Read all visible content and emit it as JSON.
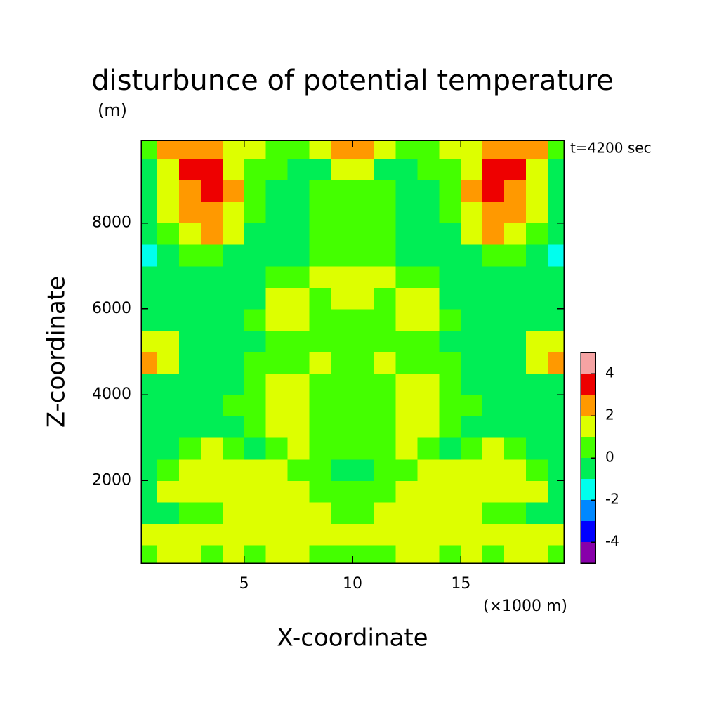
{
  "chart_data": {
    "type": "contour",
    "title": "disturbunce of potential temperature",
    "y_unit": "(m)",
    "x_unit": "(×1000 m)",
    "annotation": "t=4200 sec",
    "xlabel": "X-coordinate",
    "ylabel": "Z-coordinate",
    "xlim": [
      0.25,
      19.75
    ],
    "ylim": [
      75,
      9925
    ],
    "xticks": [
      5,
      10,
      15
    ],
    "yticks": [
      2000,
      4000,
      6000,
      8000
    ],
    "x": [
      0.5,
      1.5,
      2.5,
      3.5,
      4.5,
      5.5,
      6.5,
      7.5,
      8.5,
      9.5,
      10.5,
      11.5,
      12.5,
      13.5,
      14.5,
      15.5,
      16.5,
      17.5,
      18.5,
      19.5
    ],
    "y": [
      250,
      750,
      1250,
      1750,
      2250,
      2750,
      3250,
      3750,
      4250,
      4750,
      5250,
      5750,
      6250,
      6750,
      7250,
      7750,
      8250,
      8750,
      9250,
      9750
    ],
    "z": [
      [
        0.5,
        1.5,
        1.5,
        0.5,
        1.5,
        0.5,
        1.5,
        1.5,
        0.5,
        0.5,
        0.5,
        0.5,
        1.5,
        1.5,
        0.5,
        1.5,
        0.5,
        1.5,
        1.5,
        0.5
      ],
      [
        1.5,
        1.5,
        1.5,
        1.5,
        1.5,
        1.5,
        1.5,
        1.5,
        1.5,
        1.5,
        1.5,
        1.5,
        1.5,
        1.5,
        1.5,
        1.5,
        1.5,
        1.5,
        1.5,
        1.5
      ],
      [
        -0.5,
        -0.5,
        0.5,
        0.5,
        1.5,
        1.5,
        1.5,
        1.5,
        1.5,
        0.5,
        0.5,
        1.5,
        1.5,
        1.5,
        1.5,
        1.5,
        0.5,
        0.5,
        -0.5,
        -0.5
      ],
      [
        -0.5,
        1.5,
        1.5,
        1.5,
        1.5,
        1.5,
        1.5,
        1.5,
        0.5,
        0.5,
        0.5,
        0.5,
        1.5,
        1.5,
        1.5,
        1.5,
        1.5,
        1.5,
        1.5,
        -0.5
      ],
      [
        -0.5,
        0.5,
        1.5,
        1.5,
        1.5,
        1.5,
        1.5,
        0.5,
        0.5,
        -0.5,
        -0.5,
        0.5,
        0.5,
        1.5,
        1.5,
        1.5,
        1.5,
        1.5,
        0.5,
        -0.5
      ],
      [
        -0.5,
        -0.5,
        0.5,
        1.5,
        0.5,
        -0.5,
        0.5,
        1.5,
        0.5,
        0.5,
        0.5,
        0.5,
        1.5,
        0.5,
        -0.5,
        0.5,
        1.5,
        0.5,
        -0.5,
        -0.5
      ],
      [
        -0.5,
        -0.5,
        -0.5,
        -0.5,
        -0.5,
        0.5,
        1.5,
        1.5,
        0.5,
        0.5,
        0.5,
        0.5,
        1.5,
        1.5,
        0.5,
        -0.5,
        -0.5,
        -0.5,
        -0.5,
        -0.5
      ],
      [
        -0.5,
        -0.5,
        -0.5,
        -0.5,
        0.5,
        0.5,
        1.5,
        1.5,
        0.5,
        0.5,
        0.5,
        0.5,
        1.5,
        1.5,
        0.5,
        0.5,
        -0.5,
        -0.5,
        -0.5,
        -0.5
      ],
      [
        -0.5,
        -0.5,
        -0.5,
        -0.5,
        -0.5,
        0.5,
        1.5,
        1.5,
        0.5,
        0.5,
        0.5,
        0.5,
        1.5,
        1.5,
        0.5,
        -0.5,
        -0.5,
        -0.5,
        -0.5,
        -0.5
      ],
      [
        2.5,
        1.5,
        -0.5,
        -0.5,
        -0.5,
        0.5,
        0.5,
        0.5,
        1.5,
        0.5,
        0.5,
        1.5,
        0.5,
        0.5,
        0.5,
        -0.5,
        -0.5,
        -0.5,
        1.5,
        2.5
      ],
      [
        1.5,
        1.5,
        -0.5,
        -0.5,
        -0.5,
        -0.5,
        0.5,
        0.5,
        0.5,
        0.5,
        0.5,
        0.5,
        0.5,
        0.5,
        -0.5,
        -0.5,
        -0.5,
        -0.5,
        1.5,
        1.5
      ],
      [
        -0.5,
        -0.5,
        -0.5,
        -0.5,
        -0.5,
        0.5,
        1.5,
        1.5,
        0.5,
        0.5,
        0.5,
        0.5,
        1.5,
        1.5,
        0.5,
        -0.5,
        -0.5,
        -0.5,
        -0.5,
        -0.5
      ],
      [
        -0.5,
        -0.5,
        -0.5,
        -0.5,
        -0.5,
        -0.5,
        1.5,
        1.5,
        0.5,
        1.5,
        1.5,
        0.5,
        1.5,
        1.5,
        -0.5,
        -0.5,
        -0.5,
        -0.5,
        -0.5,
        -0.5
      ],
      [
        -0.5,
        -0.5,
        -0.5,
        -0.5,
        -0.5,
        -0.5,
        0.5,
        0.5,
        1.5,
        1.5,
        1.5,
        1.5,
        0.5,
        0.5,
        -0.5,
        -0.5,
        -0.5,
        -0.5,
        -0.5,
        -0.5
      ],
      [
        -1.5,
        -0.5,
        0.5,
        0.5,
        -0.5,
        -0.5,
        -0.5,
        -0.5,
        0.5,
        0.5,
        0.5,
        0.5,
        -0.5,
        -0.5,
        -0.5,
        -0.5,
        0.5,
        0.5,
        -0.5,
        -1.5
      ],
      [
        -0.5,
        0.5,
        1.5,
        2.5,
        1.5,
        -0.5,
        -0.5,
        -0.5,
        0.5,
        0.5,
        0.5,
        0.5,
        -0.5,
        -0.5,
        -0.5,
        1.5,
        2.5,
        1.5,
        0.5,
        -0.5
      ],
      [
        -0.5,
        1.5,
        2.5,
        2.5,
        1.5,
        0.5,
        -0.5,
        -0.5,
        0.5,
        0.5,
        0.5,
        0.5,
        -0.5,
        -0.5,
        0.5,
        1.5,
        2.5,
        2.5,
        1.5,
        -0.5
      ],
      [
        -0.5,
        1.5,
        2.5,
        3.5,
        2.5,
        0.5,
        -0.5,
        -0.5,
        0.5,
        0.5,
        0.5,
        0.5,
        -0.5,
        -0.5,
        0.5,
        2.5,
        3.5,
        2.5,
        1.5,
        -0.5
      ],
      [
        -0.5,
        1.5,
        3.5,
        3.5,
        1.5,
        0.5,
        0.5,
        -0.5,
        -0.5,
        1.5,
        1.5,
        -0.5,
        -0.5,
        0.5,
        0.5,
        1.5,
        3.5,
        3.5,
        1.5,
        -0.5
      ],
      [
        0.5,
        2.5,
        2.5,
        2.5,
        1.5,
        1.5,
        0.5,
        0.5,
        1.5,
        2.5,
        2.5,
        1.5,
        0.5,
        0.5,
        1.5,
        1.5,
        2.5,
        2.5,
        2.5,
        0.5
      ]
    ],
    "levels": [
      -5,
      -4,
      -3,
      -2,
      -1,
      0,
      1,
      2,
      3,
      4,
      5
    ],
    "colors": [
      "#8800aa",
      "#0000ff",
      "#0088ff",
      "#00ffee",
      "#00ee55",
      "#44ff00",
      "#ddff00",
      "#ff9900",
      "#ee0000",
      "#f5a3a3"
    ],
    "colorbar_ticks": [
      -4,
      -2,
      0,
      2,
      4
    ]
  }
}
